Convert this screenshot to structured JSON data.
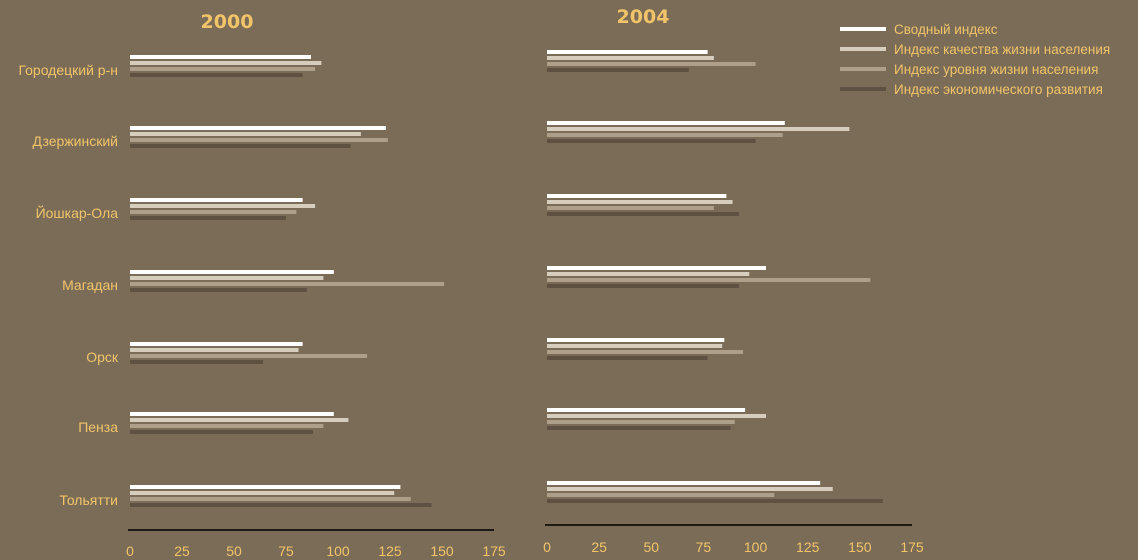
{
  "colors": {
    "background": "#7a6c57",
    "text": "#f2c46a",
    "axis": "#1e1a14"
  },
  "chart_data": {
    "type": "bar",
    "orientation": "horizontal",
    "categories": [
      "Городецкий р-н",
      "Дзержинский",
      "Йошкар-Ола",
      "Магадан",
      "Орск",
      "Пенза",
      "Тольятти"
    ],
    "xlim": [
      0,
      175
    ],
    "xticks": [
      0,
      25,
      50,
      75,
      100,
      125,
      150,
      175
    ],
    "legend": {
      "position": "top-right",
      "entries": [
        {
          "name": "Сводный индекс",
          "color": "#ffffff"
        },
        {
          "name": "Индекс качества жизни населения",
          "color": "#d6cdbd"
        },
        {
          "name": "Индекс уровня жизни населения",
          "color": "#ad9f89"
        },
        {
          "name": "Индекс экономического развития",
          "color": "#5e5142"
        }
      ]
    },
    "panels": [
      {
        "title": "2000",
        "series": [
          {
            "name": "Сводный индекс",
            "values": [
              87,
              123,
              83,
              98,
              83,
              98,
              130
            ]
          },
          {
            "name": "Индекс качества жизни населения",
            "values": [
              92,
              111,
              89,
              93,
              81,
              105,
              127
            ]
          },
          {
            "name": "Индекс уровня жизни населения",
            "values": [
              89,
              124,
              80,
              151,
              114,
              93,
              135
            ]
          },
          {
            "name": "Индекс экономического развития",
            "values": [
              83,
              106,
              75,
              85,
              64,
              88,
              145
            ]
          }
        ]
      },
      {
        "title": "2004",
        "series": [
          {
            "name": "Сводный индекс",
            "values": [
              77,
              114,
              86,
              105,
              85,
              95,
              131
            ]
          },
          {
            "name": "Индекс качества жизни населения",
            "values": [
              80,
              145,
              89,
              97,
              84,
              105,
              137
            ]
          },
          {
            "name": "Индекс уровня жизни населения",
            "values": [
              100,
              113,
              80,
              155,
              94,
              90,
              109
            ]
          },
          {
            "name": "Индекс экономического развития",
            "values": [
              68,
              100,
              92,
              92,
              77,
              88,
              161
            ]
          }
        ]
      }
    ]
  }
}
